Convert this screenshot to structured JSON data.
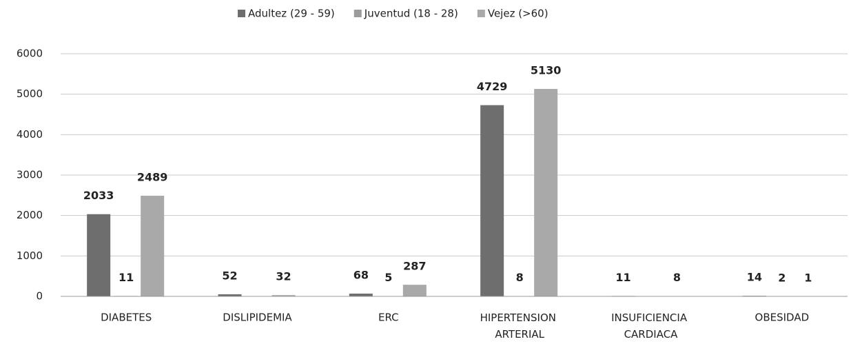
{
  "chart_data": {
    "type": "bar",
    "categories": [
      "DIABETES",
      "DISLIPIDEMIA",
      "ERC",
      "HIPERTENSION ARTERIAL",
      "INSUFICIENCIA CARDIACA",
      "OBESIDAD"
    ],
    "series": [
      {
        "name": "Adultez (29 - 59)",
        "color": "#6e6e6e",
        "values": [
          2033,
          52,
          68,
          4729,
          11,
          14
        ]
      },
      {
        "name": "Juventud (18 - 28)",
        "color": "#9b9b9b",
        "values": [
          11,
          null,
          5,
          8,
          null,
          2
        ]
      },
      {
        "name": "Vejez (>60)",
        "color": "#a9a9a9",
        "values": [
          2489,
          32,
          287,
          5130,
          8,
          1
        ]
      }
    ],
    "ylim": [
      0,
      6000
    ],
    "yticks": [
      0,
      1000,
      2000,
      3000,
      4000,
      5000,
      6000
    ],
    "grid": true
  }
}
